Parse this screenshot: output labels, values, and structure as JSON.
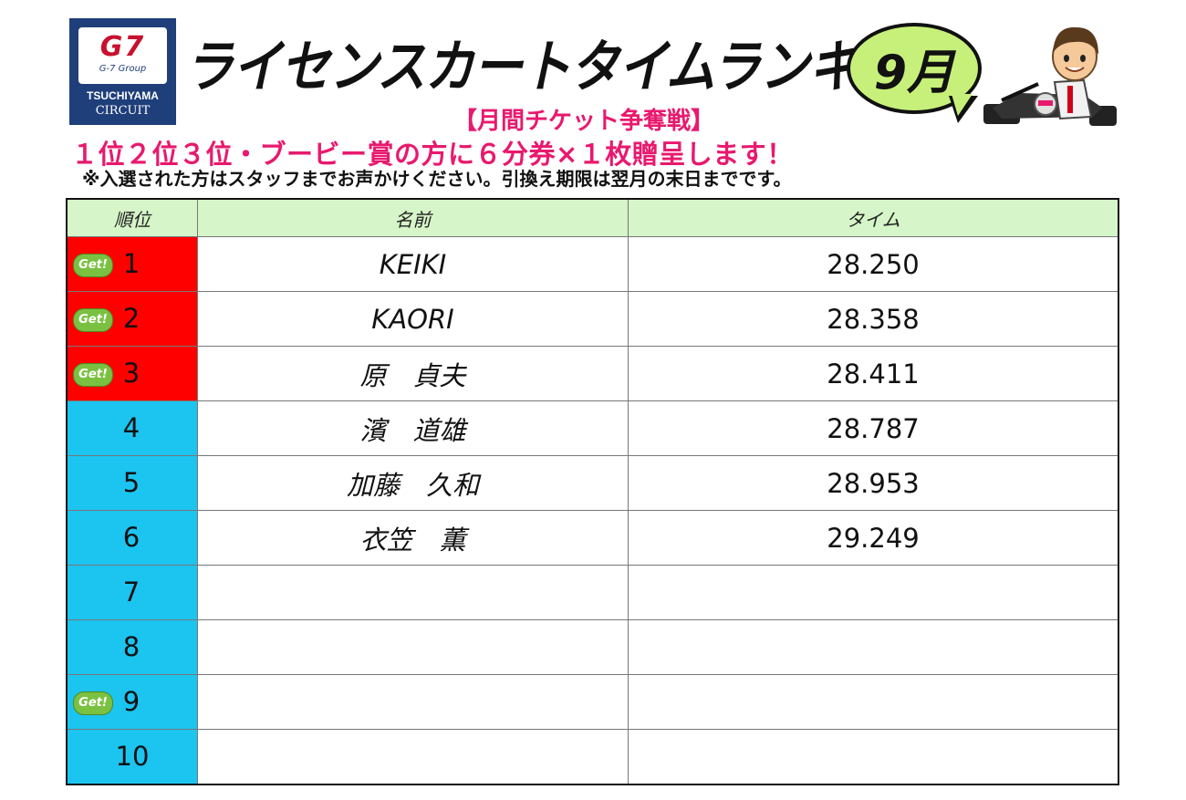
{
  "logo": {
    "brand": "G7",
    "group": "G-7 Group",
    "name": "TSUCHIYAMA",
    "subname": "CIRCUIT"
  },
  "title": "ライセンスカートタイムランキング",
  "month": "9月",
  "subtitle": "【月間チケット争奪戦】",
  "prize": "１位２位３位・ブービー賞の方に６分券×１枚贈呈します！",
  "note": "※入選された方はスタッフまでお声かけください。引換え期限は翌月の末日までです。",
  "table": {
    "headers": [
      "順位",
      "名前",
      "タイム"
    ],
    "badge_label": "Get!",
    "rows": [
      {
        "rank": "1",
        "name": "KEIKI",
        "time": "28.250",
        "badge": true,
        "tier": "top"
      },
      {
        "rank": "2",
        "name": "KAORI",
        "time": "28.358",
        "badge": true,
        "tier": "top"
      },
      {
        "rank": "3",
        "name": "原　貞夫",
        "time": "28.411",
        "badge": true,
        "tier": "top"
      },
      {
        "rank": "4",
        "name": "濱　道雄",
        "time": "28.787",
        "badge": false,
        "tier": "rest"
      },
      {
        "rank": "5",
        "name": "加藤　久和",
        "time": "28.953",
        "badge": false,
        "tier": "rest"
      },
      {
        "rank": "6",
        "name": "衣笠　薫",
        "time": "29.249",
        "badge": false,
        "tier": "rest"
      },
      {
        "rank": "7",
        "name": "",
        "time": "",
        "badge": false,
        "tier": "rest"
      },
      {
        "rank": "8",
        "name": "",
        "time": "",
        "badge": false,
        "tier": "rest"
      },
      {
        "rank": "9",
        "name": "",
        "time": "",
        "badge": true,
        "tier": "rest"
      },
      {
        "rank": "10",
        "name": "",
        "time": "",
        "badge": false,
        "tier": "rest"
      }
    ]
  },
  "colors": {
    "top_rank": "#ff0000",
    "rest_rank": "#1cc4f0",
    "header_bg": "#d6f5c8",
    "accent_pink": "#e8196e",
    "bubble": "#c7f07a",
    "logo_bg": "#1f3f7a"
  },
  "icons": {
    "logo": "g7-tsuchiyama-logo",
    "mascot": "kart-driver-mascot-icon",
    "badge": "get-badge-icon"
  }
}
